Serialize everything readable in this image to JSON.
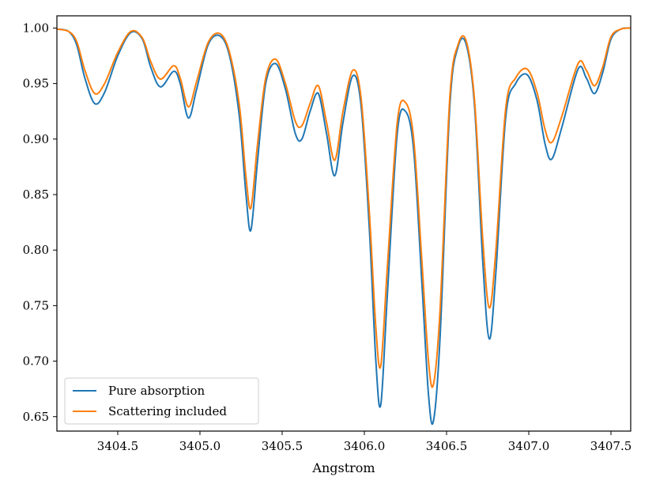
{
  "chart_data": {
    "type": "line",
    "xlabel": "Angstrom",
    "ylabel": "",
    "xlim": [
      3404.13,
      3407.62
    ],
    "ylim": [
      0.637,
      1.011
    ],
    "grid": false,
    "legend_position": "lower-left",
    "xticks": [
      {
        "value": 3404.5,
        "label": "3404.5"
      },
      {
        "value": 3405.0,
        "label": "3405.0"
      },
      {
        "value": 3405.5,
        "label": "3405.5"
      },
      {
        "value": 3406.0,
        "label": "3406.0"
      },
      {
        "value": 3406.5,
        "label": "3406.5"
      },
      {
        "value": 3407.0,
        "label": "3407.0"
      },
      {
        "value": 3407.5,
        "label": "3407.5"
      }
    ],
    "yticks": [
      {
        "value": 1.0,
        "label": "1.00"
      },
      {
        "value": 0.95,
        "label": "0.95"
      },
      {
        "value": 0.9,
        "label": "0.90"
      },
      {
        "value": 0.85,
        "label": "0.85"
      },
      {
        "value": 0.8,
        "label": "0.80"
      },
      {
        "value": 0.75,
        "label": "0.75"
      },
      {
        "value": 0.7,
        "label": "0.70"
      },
      {
        "value": 0.65,
        "label": "0.65"
      }
    ],
    "series": [
      {
        "name": "Pure absorption",
        "color": "#1f77b4",
        "points": [
          [
            3404.13,
            0.999
          ],
          [
            3404.2,
            0.997
          ],
          [
            3404.25,
            0.985
          ],
          [
            3404.3,
            0.955
          ],
          [
            3404.36,
            0.932
          ],
          [
            3404.42,
            0.942
          ],
          [
            3404.5,
            0.975
          ],
          [
            3404.58,
            0.996
          ],
          [
            3404.65,
            0.99
          ],
          [
            3404.7,
            0.965
          ],
          [
            3404.76,
            0.947
          ],
          [
            3404.84,
            0.961
          ],
          [
            3404.88,
            0.95
          ],
          [
            3404.93,
            0.919
          ],
          [
            3404.98,
            0.945
          ],
          [
            3405.05,
            0.985
          ],
          [
            3405.12,
            0.993
          ],
          [
            3405.18,
            0.975
          ],
          [
            3405.24,
            0.92
          ],
          [
            3405.28,
            0.85
          ],
          [
            3405.31,
            0.818
          ],
          [
            3405.35,
            0.88
          ],
          [
            3405.4,
            0.95
          ],
          [
            3405.46,
            0.968
          ],
          [
            3405.52,
            0.945
          ],
          [
            3405.58,
            0.905
          ],
          [
            3405.62,
            0.9
          ],
          [
            3405.67,
            0.925
          ],
          [
            3405.72,
            0.941
          ],
          [
            3405.77,
            0.905
          ],
          [
            3405.82,
            0.867
          ],
          [
            3405.87,
            0.915
          ],
          [
            3405.93,
            0.957
          ],
          [
            3405.98,
            0.93
          ],
          [
            3406.03,
            0.82
          ],
          [
            3406.07,
            0.7
          ],
          [
            3406.1,
            0.661
          ],
          [
            3406.14,
            0.76
          ],
          [
            3406.2,
            0.905
          ],
          [
            3406.25,
            0.925
          ],
          [
            3406.3,
            0.89
          ],
          [
            3406.35,
            0.77
          ],
          [
            3406.39,
            0.67
          ],
          [
            3406.42,
            0.646
          ],
          [
            3406.46,
            0.72
          ],
          [
            3406.52,
            0.93
          ],
          [
            3406.57,
            0.983
          ],
          [
            3406.62,
            0.985
          ],
          [
            3406.67,
            0.93
          ],
          [
            3406.72,
            0.79
          ],
          [
            3406.76,
            0.72
          ],
          [
            3406.8,
            0.78
          ],
          [
            3406.86,
            0.92
          ],
          [
            3406.92,
            0.95
          ],
          [
            3406.99,
            0.958
          ],
          [
            3407.05,
            0.935
          ],
          [
            3407.1,
            0.895
          ],
          [
            3407.14,
            0.882
          ],
          [
            3407.2,
            0.91
          ],
          [
            3407.3,
            0.963
          ],
          [
            3407.35,
            0.955
          ],
          [
            3407.4,
            0.941
          ],
          [
            3407.45,
            0.96
          ],
          [
            3407.5,
            0.99
          ],
          [
            3407.56,
            0.999
          ],
          [
            3407.62,
            1.0
          ]
        ]
      },
      {
        "name": "Scattering included",
        "color": "#ff7f0e",
        "points": [
          [
            3404.13,
            0.999
          ],
          [
            3404.2,
            0.997
          ],
          [
            3404.25,
            0.988
          ],
          [
            3404.3,
            0.962
          ],
          [
            3404.36,
            0.941
          ],
          [
            3404.42,
            0.95
          ],
          [
            3404.5,
            0.978
          ],
          [
            3404.58,
            0.997
          ],
          [
            3404.65,
            0.991
          ],
          [
            3404.7,
            0.97
          ],
          [
            3404.76,
            0.954
          ],
          [
            3404.84,
            0.966
          ],
          [
            3404.88,
            0.955
          ],
          [
            3404.93,
            0.929
          ],
          [
            3404.98,
            0.952
          ],
          [
            3405.05,
            0.987
          ],
          [
            3405.12,
            0.995
          ],
          [
            3405.18,
            0.978
          ],
          [
            3405.24,
            0.93
          ],
          [
            3405.28,
            0.866
          ],
          [
            3405.31,
            0.838
          ],
          [
            3405.35,
            0.895
          ],
          [
            3405.4,
            0.955
          ],
          [
            3405.46,
            0.972
          ],
          [
            3405.52,
            0.95
          ],
          [
            3405.58,
            0.916
          ],
          [
            3405.62,
            0.912
          ],
          [
            3405.67,
            0.932
          ],
          [
            3405.72,
            0.948
          ],
          [
            3405.77,
            0.915
          ],
          [
            3405.82,
            0.881
          ],
          [
            3405.87,
            0.925
          ],
          [
            3405.93,
            0.962
          ],
          [
            3405.98,
            0.937
          ],
          [
            3406.03,
            0.835
          ],
          [
            3406.07,
            0.73
          ],
          [
            3406.1,
            0.696
          ],
          [
            3406.14,
            0.785
          ],
          [
            3406.2,
            0.915
          ],
          [
            3406.25,
            0.933
          ],
          [
            3406.3,
            0.9
          ],
          [
            3406.35,
            0.79
          ],
          [
            3406.39,
            0.7
          ],
          [
            3406.42,
            0.679
          ],
          [
            3406.46,
            0.745
          ],
          [
            3406.52,
            0.938
          ],
          [
            3406.57,
            0.985
          ],
          [
            3406.62,
            0.988
          ],
          [
            3406.67,
            0.935
          ],
          [
            3406.72,
            0.81
          ],
          [
            3406.76,
            0.748
          ],
          [
            3406.8,
            0.8
          ],
          [
            3406.86,
            0.928
          ],
          [
            3406.92,
            0.955
          ],
          [
            3406.99,
            0.963
          ],
          [
            3407.05,
            0.942
          ],
          [
            3407.1,
            0.908
          ],
          [
            3407.14,
            0.897
          ],
          [
            3407.2,
            0.92
          ],
          [
            3407.3,
            0.968
          ],
          [
            3407.35,
            0.962
          ],
          [
            3407.4,
            0.948
          ],
          [
            3407.45,
            0.965
          ],
          [
            3407.5,
            0.992
          ],
          [
            3407.56,
            0.999
          ],
          [
            3407.62,
            1.0
          ]
        ]
      }
    ]
  }
}
